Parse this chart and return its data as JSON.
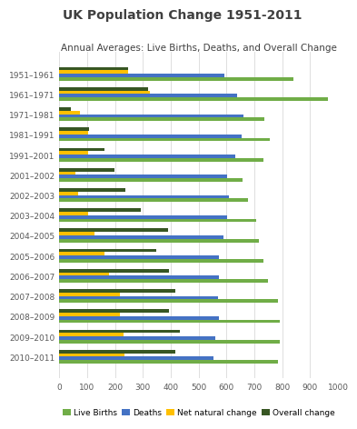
{
  "title": "UK Population Change 1951-2011",
  "subtitle": "Annual Averages: Live Births, Deaths, and Overall Change",
  "categories": [
    "1951–1961",
    "1961–1971",
    "1971–1981",
    "1981–1991",
    "1991–2001",
    "2001–2002",
    "2002–2003",
    "2003–2004",
    "2004–2005",
    "2005–2006",
    "2006–2007",
    "2007–2008",
    "2008–2009",
    "2009–2010",
    "2010–2011"
  ],
  "series": {
    "Live Births": [
      839,
      963,
      736,
      757,
      733,
      659,
      676,
      705,
      716,
      733,
      749,
      786,
      790,
      790,
      786
    ],
    "Deaths": [
      593,
      638,
      662,
      655,
      630,
      602,
      608,
      601,
      589,
      572,
      572,
      568,
      572,
      560,
      552
    ],
    "Net natural change": [
      246,
      325,
      74,
      102,
      103,
      57,
      68,
      104,
      127,
      161,
      177,
      218,
      218,
      230,
      234
    ],
    "Overall change": [
      248,
      320,
      42,
      108,
      163,
      199,
      236,
      291,
      390,
      348,
      395,
      415,
      393,
      432,
      416
    ]
  },
  "colors": {
    "Live Births": "#70ad47",
    "Deaths": "#4472c4",
    "Net natural change": "#ffc000",
    "Overall change": "#375623"
  },
  "xlim": [
    0,
    1000
  ],
  "xticks": [
    0,
    100,
    200,
    300,
    400,
    500,
    600,
    700,
    800,
    900,
    1000
  ],
  "title_fontsize": 10,
  "subtitle_fontsize": 7.5,
  "tick_fontsize": 6.5,
  "legend_fontsize": 6.5,
  "background_color": "#ffffff",
  "grid_color": "#d9d9d9"
}
